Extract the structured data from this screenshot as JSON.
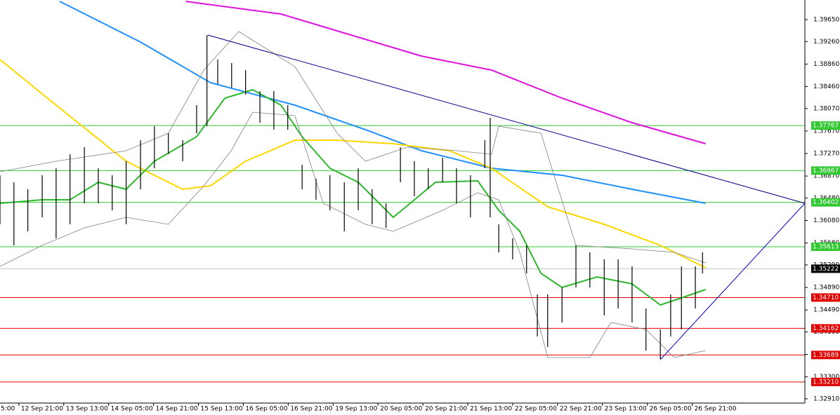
{
  "chart_data": {
    "type": "ohlc",
    "xlim": [
      0.58,
      18.51
    ],
    "ylim": [
      1.32834,
      1.39999
    ],
    "xticks": [
      {
        "value": 0,
        "label": "5:00"
      },
      {
        "value": 1,
        "label": "12 Sep 21:00"
      },
      {
        "value": 2,
        "label": "13 Sep 13:00"
      },
      {
        "value": 3,
        "label": "14 Sep 05:00"
      },
      {
        "value": 4,
        "label": "14 Sep 21:00"
      },
      {
        "value": 5,
        "label": "15 Sep 13:00"
      },
      {
        "value": 6,
        "label": "16 Sep 05:00"
      },
      {
        "value": 7,
        "label": "16 Sep 21:00"
      },
      {
        "value": 8,
        "label": "19 Sep 13:00"
      },
      {
        "value": 9,
        "label": "20 Sep 05:00"
      },
      {
        "value": 10,
        "label": "20 Sep 21:00"
      },
      {
        "value": 11,
        "label": "21 Sep 13:00"
      },
      {
        "value": 12,
        "label": "22 Sep 05:00"
      },
      {
        "value": 13,
        "label": "22 Sep 21:00"
      },
      {
        "value": 14,
        "label": "23 Sep 13:00"
      },
      {
        "value": 15,
        "label": "26 Sep 05:00"
      },
      {
        "value": 16,
        "label": "26 Sep 21:00"
      }
    ],
    "yticks": [
      {
        "value": 1.3965,
        "label": "1.39650"
      },
      {
        "value": 1.3926,
        "label": "1.39260"
      },
      {
        "value": 1.3886,
        "label": "1.38860"
      },
      {
        "value": 1.3846,
        "label": "1.38460"
      },
      {
        "value": 1.3807,
        "label": "1.38070"
      },
      {
        "value": 1.3767,
        "label": "1.37670"
      },
      {
        "value": 1.3727,
        "label": "1.37270"
      },
      {
        "value": 1.3687,
        "label": "1.36870"
      },
      {
        "value": 1.3648,
        "label": "1.36480"
      },
      {
        "value": 1.3608,
        "label": "1.36080"
      },
      {
        "value": 1.3568,
        "label": "1.35680"
      },
      {
        "value": 1.3529,
        "label": "1.35290"
      },
      {
        "value": 1.3489,
        "label": "1.34890"
      },
      {
        "value": 1.3449,
        "label": "1.34490"
      },
      {
        "value": 1.341,
        "label": "1.34100"
      },
      {
        "value": 1.337,
        "label": "1.33700"
      },
      {
        "value": 1.333,
        "label": "1.33300"
      },
      {
        "value": 1.3291,
        "label": "1.32910"
      }
    ],
    "bars": {
      "color": "#000000",
      "x": [
        0.58,
        0.89,
        1.2,
        1.52,
        1.83,
        2.14,
        2.46,
        2.77,
        3.08,
        3.39,
        3.71,
        4.02,
        4.33,
        4.65,
        4.96,
        5.19,
        5.43,
        5.74,
        6.05,
        6.37,
        6.68,
        6.99,
        7.31,
        7.62,
        7.93,
        8.25,
        8.56,
        8.87,
        9.18,
        9.5,
        9.81,
        10.12,
        10.44,
        10.75,
        11.06,
        11.38,
        11.5,
        11.69,
        12.0,
        12.31,
        12.55,
        12.78,
        13.1,
        13.41,
        13.72,
        14.04,
        14.35,
        14.66,
        14.97,
        15.29,
        15.52,
        15.76,
        16.07,
        16.23
      ],
      "high": [
        1.36884,
        1.36759,
        1.36635,
        1.36884,
        1.37008,
        1.37258,
        1.37382,
        1.37008,
        1.36884,
        1.37133,
        1.37507,
        1.37756,
        1.37631,
        1.37507,
        1.3813,
        1.39376,
        1.3894,
        1.38878,
        1.38753,
        1.38379,
        1.38379,
        1.3813,
        1.37071,
        1.36822,
        1.36884,
        1.36759,
        1.37008,
        1.36635,
        1.36385,
        1.37382,
        1.37133,
        1.37008,
        1.37195,
        1.37008,
        1.36884,
        1.37507,
        1.37906,
        1.36012,
        1.35763,
        1.35638,
        1.34766,
        1.34766,
        1.3489,
        1.35638,
        1.35513,
        1.35389,
        1.35389,
        1.35264,
        1.34517,
        1.34143,
        1.34766,
        1.35264,
        1.35264,
        1.35513
      ],
      "low": [
        1.36012,
        1.35638,
        1.35887,
        1.36136,
        1.35763,
        1.36012,
        1.36385,
        1.36385,
        1.36261,
        1.36012,
        1.36635,
        1.37008,
        1.37258,
        1.37133,
        1.37631,
        1.37756,
        1.38504,
        1.38441,
        1.38317,
        1.37818,
        1.37694,
        1.37694,
        1.36635,
        1.36448,
        1.36261,
        1.35887,
        1.36261,
        1.36012,
        1.35949,
        1.36759,
        1.3651,
        1.36635,
        1.36759,
        1.36385,
        1.36136,
        1.37008,
        1.36136,
        1.35513,
        1.35389,
        1.3514,
        1.34018,
        1.33831,
        1.34267,
        1.3489,
        1.3489,
        1.34392,
        1.34517,
        1.34267,
        1.33769,
        1.33619,
        1.34018,
        1.34143,
        1.34517,
        1.3514
      ]
    },
    "lines": [
      {
        "color": "#e010e0",
        "x": [
          4.72,
          6.84,
          8.4,
          9.97,
          11.53,
          13.1,
          14.66,
          16.3
        ],
        "values": [
          1.39974,
          1.3975,
          1.39376,
          1.39002,
          1.38753,
          1.38255,
          1.37818,
          1.37445
        ]
      },
      {
        "color": "#1e90ff",
        "x": [
          1.91,
          3.71,
          5.27,
          7.15,
          8.72,
          9.97,
          11.53,
          13.1,
          14.66,
          16.3
        ],
        "values": [
          1.39974,
          1.39251,
          1.38529,
          1.3813,
          1.37694,
          1.3732,
          1.37008,
          1.36884,
          1.36635,
          1.36385
        ]
      },
      {
        "color": "#ffd700",
        "x": [
          0.58,
          1.83,
          3.39,
          4.65,
          5.27,
          6.05,
          7.15,
          8.09,
          9.34,
          10.59,
          11.53,
          12.78,
          14.04,
          15.29,
          16.3
        ],
        "values": [
          1.3894,
          1.3813,
          1.37133,
          1.36635,
          1.36697,
          1.37133,
          1.37507,
          1.37507,
          1.37445,
          1.3732,
          1.37008,
          1.36323,
          1.36012,
          1.35638,
          1.35239
        ]
      },
      {
        "color": "#2db82d",
        "x": [
          0.58,
          1.52,
          2.14,
          2.77,
          3.39,
          4.02,
          4.96,
          5.59,
          6.21,
          6.84,
          7.31,
          7.93,
          8.56,
          9.34,
          10.28,
          11.22,
          11.69,
          12.16,
          12.63,
          13.1,
          13.88,
          14.66,
          15.29,
          15.76,
          16.3
        ],
        "values": [
          1.36385,
          1.36448,
          1.36448,
          1.36759,
          1.36635,
          1.37133,
          1.37569,
          1.38255,
          1.38404,
          1.3813,
          1.37569,
          1.37008,
          1.36759,
          1.36136,
          1.36759,
          1.36784,
          1.36261,
          1.35887,
          1.3514,
          1.3489,
          1.35077,
          1.34953,
          1.34579,
          1.34703,
          1.34853
        ]
      },
      {
        "color": "#808080",
        "x": [
          0.58,
          1.83,
          3.39,
          4.33,
          5.12,
          5.9,
          7.15,
          8.09,
          8.72,
          9.65,
          10.75,
          11.53,
          11.69,
          12.63,
          13.41,
          14.66,
          15.6,
          16.3
        ],
        "values": [
          1.36946,
          1.37133,
          1.3732,
          1.37631,
          1.38753,
          1.39438,
          1.38815,
          1.37631,
          1.37133,
          1.37382,
          1.3732,
          1.37258,
          1.37756,
          1.37631,
          1.35638,
          1.35576,
          1.35513,
          1.35326
        ]
      },
      {
        "color": "#808080",
        "x": [
          0.58,
          1.52,
          2.46,
          3.39,
          4.33,
          5.12,
          5.73,
          6.21,
          7.15,
          7.78,
          8.72,
          9.34,
          10.44,
          11.22,
          11.69,
          12.16,
          12.78,
          13.72,
          14.19,
          14.97,
          15.6,
          16.3
        ],
        "values": [
          1.35264,
          1.35638,
          1.35949,
          1.36136,
          1.36012,
          1.36697,
          1.3732,
          1.38005,
          1.37943,
          1.36385,
          1.36012,
          1.35887,
          1.36261,
          1.36572,
          1.36448,
          1.35513,
          1.33644,
          1.33644,
          1.34267,
          1.34143,
          1.33644,
          1.33769
        ]
      }
    ],
    "trendlines": [
      {
        "color": "#00008b",
        "x": [
          5.21,
          18.51
        ],
        "values": [
          1.39376,
          1.36385
        ]
      },
      {
        "color": "#0000cd",
        "x": [
          15.29,
          18.51
        ],
        "values": [
          1.33607,
          1.36385
        ]
      }
    ],
    "levels": [
      {
        "value": 1.37767,
        "label": "1.37767",
        "color": "#32c832"
      },
      {
        "value": 1.36967,
        "label": "1.36967",
        "color": "#32c832"
      },
      {
        "value": 1.36402,
        "label": "1.36402",
        "color": "#32c832"
      },
      {
        "value": 1.35613,
        "label": "1.35613",
        "color": "#32c832"
      },
      {
        "value": 1.35222,
        "label": "1.35222",
        "color": "#000000"
      },
      {
        "value": 1.3471,
        "label": "1.34710",
        "color": "#e00000"
      },
      {
        "value": 1.34162,
        "label": "1.34162",
        "color": "#e00000"
      },
      {
        "value": 1.33689,
        "label": "1.33689",
        "color": "#e00000"
      },
      {
        "value": 1.3321,
        "label": "1.33210",
        "color": "#e00000"
      }
    ]
  }
}
